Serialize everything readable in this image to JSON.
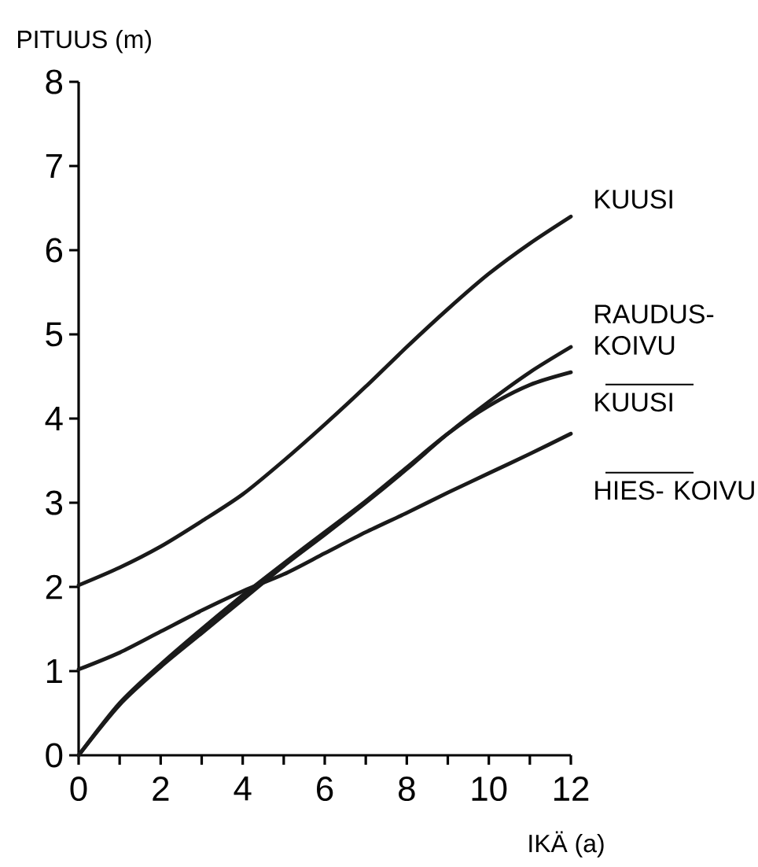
{
  "chart_data": {
    "type": "line",
    "xlabel": "IKÄ (a)",
    "ylabel": "PITUUS (m)",
    "x": [
      0,
      1,
      2,
      3,
      4,
      5,
      6,
      7,
      8,
      9,
      10,
      11,
      12
    ],
    "series": [
      {
        "name": "KUUSI",
        "color": "#1a1a1a",
        "values": [
          2.02,
          2.23,
          2.48,
          2.78,
          3.1,
          3.5,
          3.93,
          4.38,
          4.85,
          5.3,
          5.72,
          6.08,
          6.4
        ]
      },
      {
        "name": "RAUDUS- KOIVU",
        "color": "#1a1a1a",
        "values": [
          0,
          0.6,
          1.05,
          1.45,
          1.85,
          2.25,
          2.62,
          3.0,
          3.4,
          3.82,
          4.2,
          4.55,
          4.85
        ]
      },
      {
        "name": "KUUSI",
        "color": "#1a1a1a",
        "values": [
          0,
          0.62,
          1.08,
          1.5,
          1.9,
          2.28,
          2.65,
          3.02,
          3.42,
          3.82,
          4.15,
          4.4,
          4.55
        ]
      },
      {
        "name": "HIES- KOIVU",
        "color": "#1a1a1a",
        "values": [
          1.02,
          1.22,
          1.47,
          1.72,
          1.95,
          2.15,
          2.4,
          2.65,
          2.88,
          3.12,
          3.35,
          3.58,
          3.82
        ]
      }
    ],
    "xlim": [
      0,
      12
    ],
    "ylim": [
      0,
      8
    ],
    "xticks": [
      0,
      {
        "value": 1,
        "label": null
      },
      2,
      {
        "value": 3,
        "label": null
      },
      4,
      {
        "value": 5,
        "label": null
      },
      6,
      {
        "value": 7,
        "label": null
      },
      8,
      {
        "value": 9,
        "label": null
      },
      10,
      {
        "value": 11,
        "label": null
      },
      12
    ],
    "yticks": [
      0,
      1,
      2,
      3,
      4,
      5,
      6,
      7,
      8
    ],
    "line_style": "solid"
  }
}
